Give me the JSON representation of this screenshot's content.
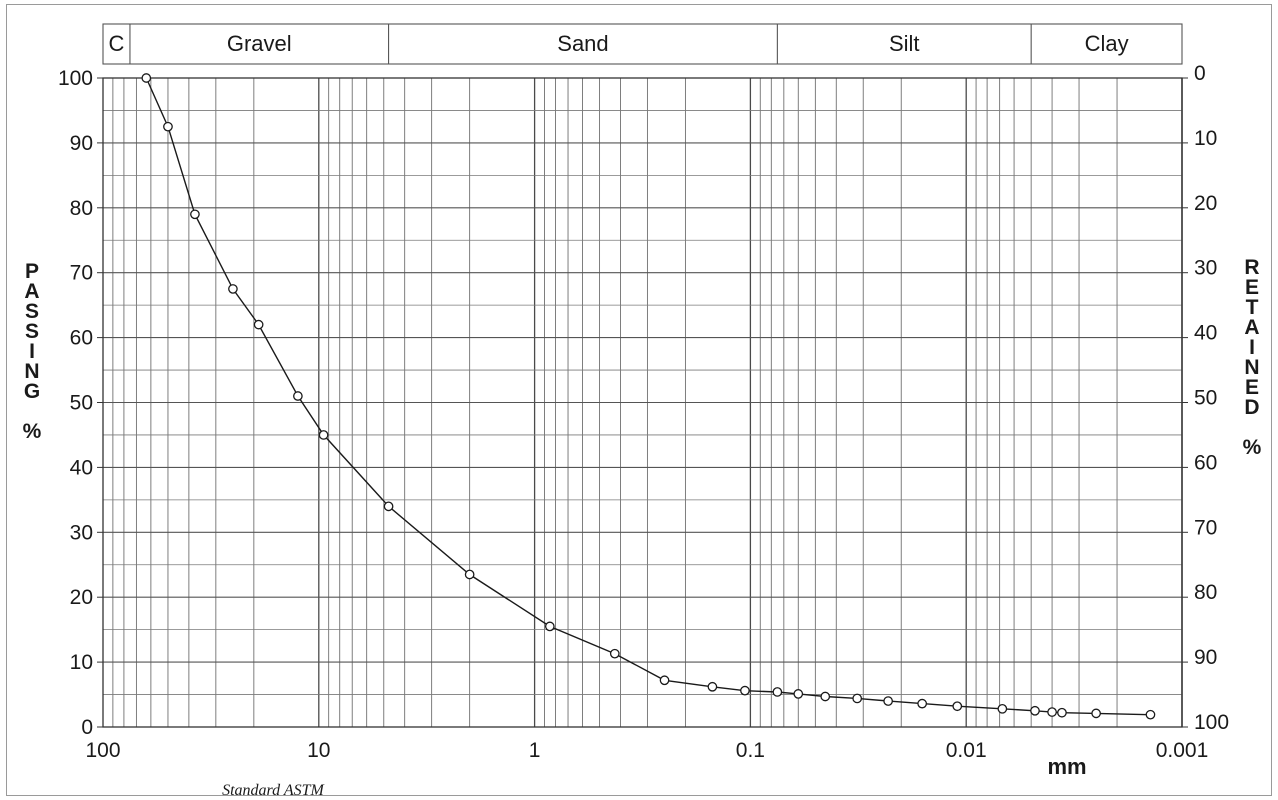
{
  "chart_data": {
    "type": "line",
    "x_scale": "log",
    "x_reversed": true,
    "xlim": [
      100,
      0.001
    ],
    "ylim": [
      0,
      100
    ],
    "x_ticks": [
      "100",
      "10",
      "1",
      "0.1",
      "0.01",
      "0.001"
    ],
    "y_ticks_left": [
      "0",
      "10",
      "20",
      "30",
      "40",
      "50",
      "60",
      "70",
      "80",
      "90",
      "100"
    ],
    "y_ticks_right": [
      "100",
      "90",
      "80",
      "70",
      "60",
      "50",
      "40",
      "30",
      "20",
      "10",
      "0"
    ],
    "ylabel_left": "PASSING %",
    "ylabel_right": "RETAINED %",
    "xlabel": "mm",
    "caption": "Standard ASTM",
    "grid": true,
    "zones": [
      {
        "label": "C",
        "from": 100,
        "to": 75
      },
      {
        "label": "Gravel",
        "from": 75,
        "to": 4.75
      },
      {
        "label": "Sand",
        "from": 4.75,
        "to": 0.075
      },
      {
        "label": "Silt",
        "from": 0.075,
        "to": 0.005
      },
      {
        "label": "Clay",
        "from": 0.005,
        "to": 0.001
      }
    ],
    "series": [
      {
        "x": [
          63,
          50,
          37.5,
          25,
          19,
          12.5,
          9.5,
          4.75,
          2,
          0.85,
          0.425,
          0.25,
          0.15,
          0.106,
          0.075,
          0.06,
          0.045,
          0.032,
          0.023,
          0.016,
          0.011,
          0.0068,
          0.0048,
          0.004,
          0.0036,
          0.0025,
          0.0014
        ],
        "y": [
          100,
          92.5,
          79,
          67.5,
          62,
          51,
          45,
          34,
          23.5,
          15.5,
          11.3,
          7.2,
          6.2,
          5.6,
          5.4,
          5.1,
          4.7,
          4.4,
          4.0,
          3.6,
          3.2,
          2.8,
          2.5,
          2.3,
          2.2,
          2.1,
          1.9
        ]
      }
    ]
  }
}
